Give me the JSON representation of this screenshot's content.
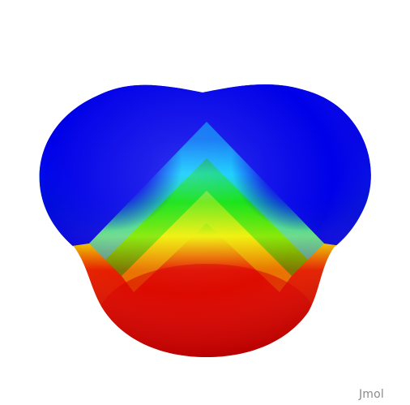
{
  "viewer": {
    "watermark_text": "Jmol",
    "background_color": "#ffffff",
    "colormap": [
      "#0000e6",
      "#00c8ff",
      "#00e000",
      "#f0f000",
      "#e00000"
    ],
    "surface_kind": "electrostatic-potential-surface"
  }
}
